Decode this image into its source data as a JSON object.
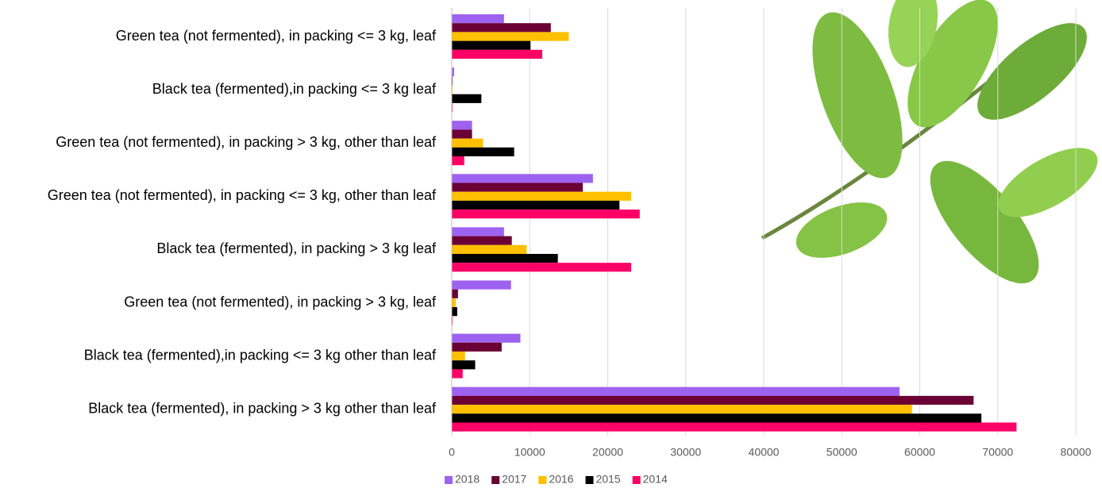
{
  "chart_data": {
    "type": "hbar",
    "categories": [
      "Green tea (not fermented), in packing <= 3 kg, leaf",
      "Black tea (fermented),in packing <= 3 kg leaf",
      "Green tea (not fermented), in packing > 3 kg, other than leaf",
      "Green tea (not fermented), in packing <= 3 kg, other than leaf",
      "Black tea (fermented), in packing > 3 kg leaf",
      "Green tea (not fermented), in packing > 3 kg, leaf",
      "Black tea (fermented),in packing <= 3 kg other than leaf",
      "Black tea (fermented), in packing > 3 kg other than leaf"
    ],
    "series": [
      {
        "name": "2018",
        "color": "#9e62f0",
        "values": [
          6700,
          300,
          2600,
          18100,
          6700,
          7600,
          8800,
          57400
        ]
      },
      {
        "name": "2017",
        "color": "#6b0034",
        "values": [
          12700,
          100,
          2600,
          16800,
          7700,
          800,
          6400,
          66900
        ]
      },
      {
        "name": "2016",
        "color": "#ffc000",
        "values": [
          15000,
          100,
          4000,
          23000,
          9600,
          500,
          1700,
          59000
        ]
      },
      {
        "name": "2015",
        "color": "#000000",
        "values": [
          10100,
          3800,
          8000,
          21500,
          13600,
          700,
          3000,
          67900
        ]
      },
      {
        "name": "2014",
        "color": "#ff0066",
        "values": [
          11600,
          100,
          1600,
          24100,
          23000,
          100,
          1400,
          72400
        ]
      }
    ],
    "xlim": [
      0,
      80000
    ],
    "xticks": [
      0,
      10000,
      20000,
      30000,
      40000,
      50000,
      60000,
      70000,
      80000
    ],
    "grid": true,
    "legend": "bottom"
  }
}
